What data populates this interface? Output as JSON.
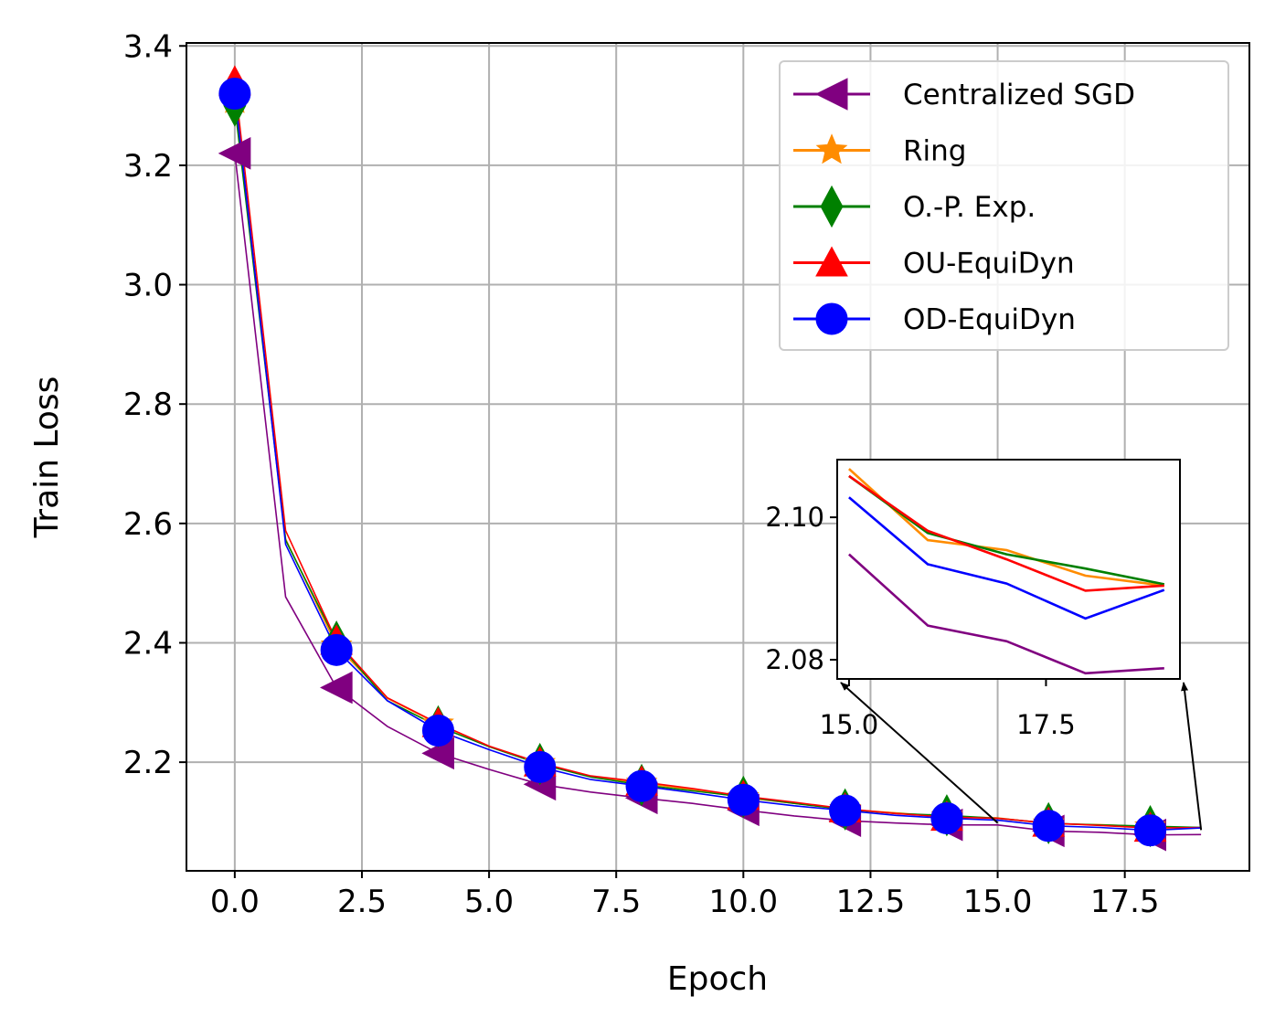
{
  "chart_data": {
    "type": "line",
    "title": "",
    "xlabel": "Epoch",
    "ylabel": "Train Loss",
    "xlim": [
      -0.95,
      19.95
    ],
    "ylim": [
      2.018,
      3.405
    ],
    "x_ticks": [
      0.0,
      2.5,
      5.0,
      7.5,
      10.0,
      12.5,
      15.0,
      17.5
    ],
    "x_tick_labels": [
      "0.0",
      "2.5",
      "5.0",
      "7.5",
      "10.0",
      "12.5",
      "15.0",
      "17.5"
    ],
    "y_ticks": [
      2.2,
      2.4,
      2.6,
      2.8,
      3.0,
      3.2,
      3.4
    ],
    "y_tick_labels": [
      "2.2",
      "2.4",
      "2.6",
      "2.8",
      "3.0",
      "3.2",
      "3.4"
    ],
    "grid": true,
    "legend_position": "top-right",
    "x": [
      0,
      1,
      2,
      3,
      4,
      5,
      6,
      7,
      8,
      9,
      10,
      11,
      12,
      13,
      14,
      15,
      16,
      17,
      18,
      19
    ],
    "marker_every": 2,
    "series": [
      {
        "name": "Centralized SGD",
        "color": "#800080",
        "marker": "triangle-left",
        "values": [
          3.22,
          2.477,
          2.325,
          2.26,
          2.215,
          2.188,
          2.163,
          2.15,
          2.14,
          2.131,
          2.12,
          2.11,
          2.102,
          2.098,
          2.095,
          2.0948,
          2.0848,
          2.0826,
          2.0781,
          2.0788
        ]
      },
      {
        "name": "Ring",
        "color": "#ff8c00",
        "marker": "star",
        "values": [
          3.31,
          2.574,
          2.395,
          2.307,
          2.264,
          2.227,
          2.198,
          2.176,
          2.165,
          2.154,
          2.141,
          2.131,
          2.121,
          2.115,
          2.109,
          2.1068,
          2.0968,
          2.0954,
          2.0918,
          2.0904
        ]
      },
      {
        "name": "O.-P. Exp.",
        "color": "#008000",
        "marker": "diamond",
        "values": [
          3.3,
          2.572,
          2.402,
          2.303,
          2.26,
          2.226,
          2.197,
          2.175,
          2.162,
          2.152,
          2.142,
          2.131,
          2.121,
          2.114,
          2.111,
          2.1058,
          2.0978,
          2.0948,
          2.0928,
          2.0906
        ]
      },
      {
        "name": "OU-EquiDyn",
        "color": "#ff0000",
        "marker": "triangle-up",
        "values": [
          3.34,
          2.588,
          2.403,
          2.308,
          2.265,
          2.227,
          2.199,
          2.177,
          2.167,
          2.156,
          2.143,
          2.133,
          2.122,
          2.114,
          2.108,
          2.1058,
          2.0981,
          2.0941,
          2.0897,
          2.0904
        ]
      },
      {
        "name": "OD-EquiDyn",
        "color": "#0000ff",
        "marker": "circle",
        "values": [
          3.32,
          2.565,
          2.388,
          2.303,
          2.253,
          2.221,
          2.192,
          2.171,
          2.16,
          2.149,
          2.137,
          2.127,
          2.119,
          2.111,
          2.106,
          2.1028,
          2.0934,
          2.0907,
          2.0858,
          2.0898
        ]
      }
    ],
    "inset": {
      "xlim": [
        14.85,
        19.2
      ],
      "ylim": [
        2.0773,
        2.1081
      ],
      "x_ticks": [
        15.0,
        17.5
      ],
      "x_tick_labels": [
        "15.0",
        "17.5"
      ],
      "y_ticks": [
        2.08,
        2.1
      ],
      "y_tick_labels": [
        "2.08",
        "2.10"
      ],
      "x_range_shown": [
        15,
        19
      ]
    }
  }
}
